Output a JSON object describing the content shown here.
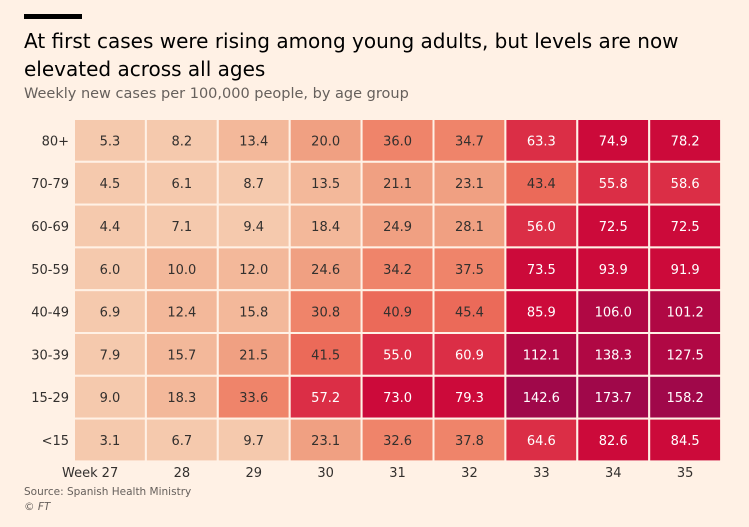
{
  "title": "At first cases were rising among young adults, but levels are now elevated across all ages",
  "subtitle": "Weekly new cases per 100,000 people, by age group",
  "source": "Source: Spanish Health Ministry",
  "copyright": "© FT",
  "chart_data": {
    "type": "heatmap",
    "x_prefix": "Week",
    "x": [
      "27",
      "28",
      "29",
      "30",
      "31",
      "32",
      "33",
      "34",
      "35"
    ],
    "y": [
      "80+",
      "70-79",
      "60-69",
      "50-59",
      "40-49",
      "30-39",
      "15-29",
      "<15"
    ],
    "values": [
      [
        5.3,
        8.2,
        13.4,
        20.0,
        36.0,
        34.7,
        63.3,
        74.9,
        78.2
      ],
      [
        4.5,
        6.1,
        8.7,
        13.5,
        21.1,
        23.1,
        43.4,
        55.8,
        58.6
      ],
      [
        4.4,
        7.1,
        9.4,
        18.4,
        24.9,
        28.1,
        56.0,
        72.5,
        72.5
      ],
      [
        6.0,
        10.0,
        12.0,
        24.6,
        34.2,
        37.5,
        73.5,
        93.9,
        91.9
      ],
      [
        6.9,
        12.4,
        15.8,
        30.8,
        40.9,
        45.4,
        85.9,
        106.0,
        101.2
      ],
      [
        7.9,
        15.7,
        21.5,
        41.5,
        55.0,
        60.9,
        112.1,
        138.3,
        127.5
      ],
      [
        9.0,
        18.3,
        33.6,
        57.2,
        73.0,
        79.3,
        142.6,
        173.7,
        158.2
      ],
      [
        3.1,
        6.7,
        9.7,
        23.1,
        32.6,
        37.8,
        64.6,
        82.6,
        84.5
      ]
    ],
    "color_scale": [
      {
        "max": 10,
        "color": "#F5C9AD"
      },
      {
        "max": 20,
        "color": "#F3B89A"
      },
      {
        "max": 30,
        "color": "#F0A082"
      },
      {
        "max": 40,
        "color": "#EF846A"
      },
      {
        "max": 50,
        "color": "#EB6A59"
      },
      {
        "max": 70,
        "color": "#DB2E46"
      },
      {
        "max": 100,
        "color": "#CC0A3A"
      },
      {
        "max": 140,
        "color": "#B00844"
      },
      {
        "max": 1000,
        "color": "#A0084A"
      }
    ],
    "dark_text_color": "#33302E",
    "light_text_color": "#FFFFFF"
  }
}
